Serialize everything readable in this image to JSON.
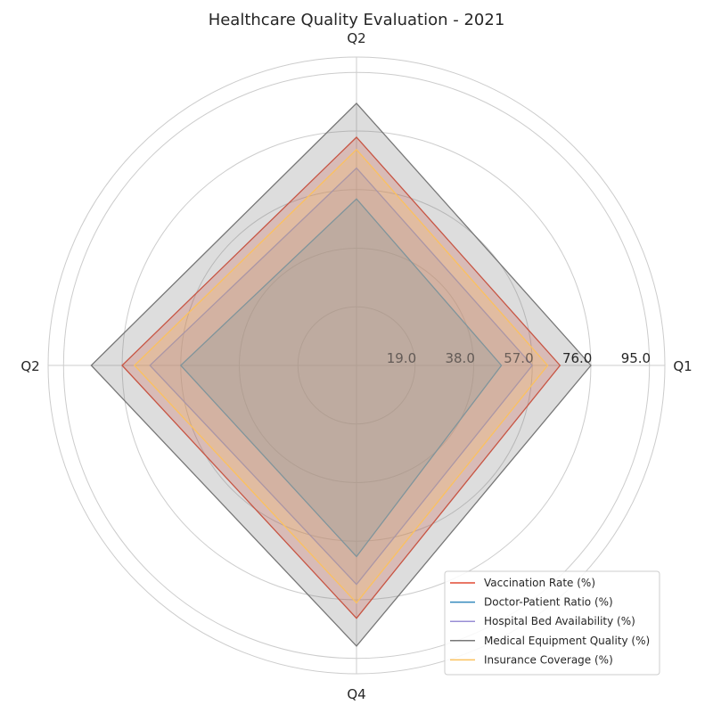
{
  "chart_data": {
    "type": "radar",
    "title": "Healthcare Quality Evaluation - 2021",
    "categories": [
      "Q1",
      "Q2",
      "Q2",
      "Q4"
    ],
    "rticks": [
      "19.0",
      "38.0",
      "57.0",
      "76.0",
      "95.0"
    ],
    "rtick_values": [
      19,
      38,
      57,
      76,
      95
    ],
    "rmax": 100,
    "grid": true,
    "legend_position": "lower-right",
    "series": [
      {
        "name": "Vaccination Rate (%)",
        "color": "#e24a33",
        "values": [
          66,
          74,
          76,
          82
        ]
      },
      {
        "name": "Doctor-Patient Ratio (%)",
        "color": "#348abd",
        "values": [
          47,
          54,
          57,
          62
        ]
      },
      {
        "name": "Hospital Bed Availability (%)",
        "color": "#988ed5",
        "values": [
          57,
          64,
          67,
          71
        ]
      },
      {
        "name": "Medical Equipment Quality (%)",
        "color": "#777777",
        "values": [
          76,
          85,
          86,
          91
        ]
      },
      {
        "name": "Insurance Coverage (%)",
        "color": "#fbc15e",
        "values": [
          62,
          70,
          72,
          77
        ]
      }
    ]
  }
}
